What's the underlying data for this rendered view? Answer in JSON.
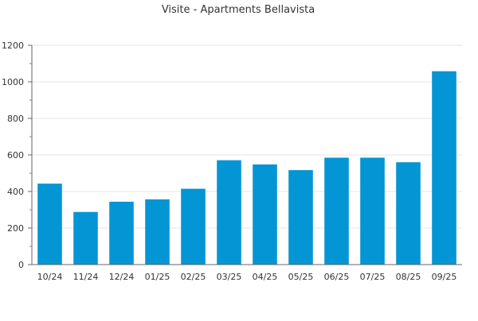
{
  "chart_data": {
    "type": "bar",
    "title": "Visite - Apartments Bellavista",
    "xlabel": "",
    "ylabel": "",
    "categories": [
      "10/24",
      "11/24",
      "12/24",
      "01/25",
      "02/25",
      "03/25",
      "04/25",
      "05/25",
      "06/25",
      "07/25",
      "08/25",
      "09/25"
    ],
    "values": [
      443,
      288,
      344,
      357,
      415,
      571,
      548,
      517,
      585,
      585,
      560,
      1058
    ],
    "ylim": [
      0,
      1200
    ],
    "yticks": [
      0,
      200,
      400,
      600,
      800,
      1000,
      1200
    ],
    "grid": true,
    "legend": "none",
    "bar_color": "#0496d4"
  }
}
